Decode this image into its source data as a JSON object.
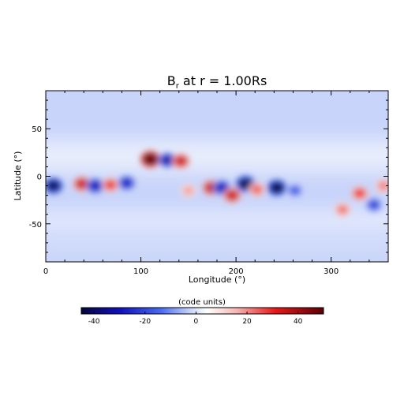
{
  "chart_data": {
    "type": "heatmap",
    "title_main": "B",
    "title_sub": "r",
    "title_rest": " at r = 1.00Rs",
    "xlabel": "Longitude (°)",
    "ylabel": "Latitude (°)",
    "xlim": [
      0,
      360
    ],
    "ylim": [
      -90,
      90
    ],
    "xticks": [
      0,
      100,
      200,
      300
    ],
    "yticks": [
      -50,
      0,
      50
    ],
    "background_level": -5,
    "features": [
      {
        "lon": 8,
        "lat": -10,
        "value": -40
      },
      {
        "lon": 38,
        "lat": -8,
        "value": 30
      },
      {
        "lon": 52,
        "lat": -10,
        "value": -30
      },
      {
        "lon": 68,
        "lat": -9,
        "value": 22
      },
      {
        "lon": 85,
        "lat": -7,
        "value": -28
      },
      {
        "lon": 110,
        "lat": 18,
        "value": 48
      },
      {
        "lon": 128,
        "lat": 17,
        "value": -32
      },
      {
        "lon": 142,
        "lat": 16,
        "value": 30
      },
      {
        "lon": 150,
        "lat": -15,
        "value": 12
      },
      {
        "lon": 174,
        "lat": -12,
        "value": 32
      },
      {
        "lon": 185,
        "lat": -12,
        "value": -30
      },
      {
        "lon": 196,
        "lat": -20,
        "value": 30
      },
      {
        "lon": 210,
        "lat": -8,
        "value": -42
      },
      {
        "lon": 222,
        "lat": -14,
        "value": 18
      },
      {
        "lon": 243,
        "lat": -12,
        "value": -42
      },
      {
        "lon": 262,
        "lat": -15,
        "value": -18
      },
      {
        "lon": 312,
        "lat": -35,
        "value": 16
      },
      {
        "lon": 330,
        "lat": -18,
        "value": 22
      },
      {
        "lon": 345,
        "lat": -30,
        "value": -22
      },
      {
        "lon": 355,
        "lat": -10,
        "value": 15
      }
    ],
    "colorbar": {
      "label": "(code units)",
      "range": [
        -45,
        50
      ],
      "ticks": [
        -40,
        -20,
        0,
        20,
        40
      ],
      "colormap": "blue-white-red"
    }
  }
}
